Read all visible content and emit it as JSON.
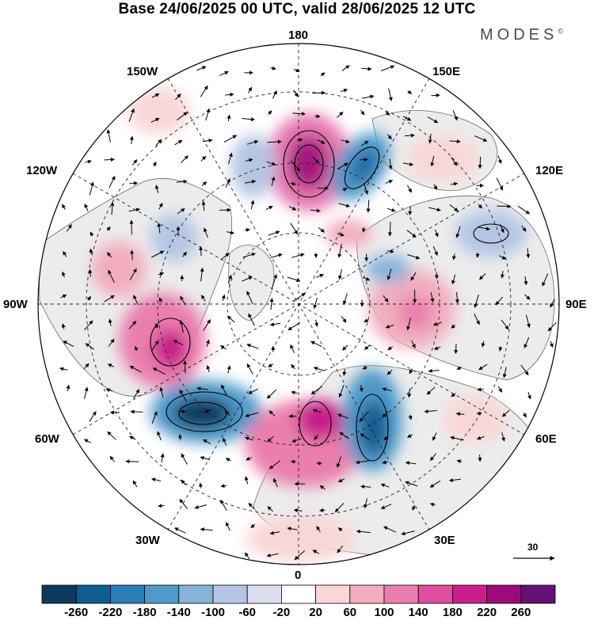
{
  "title": "Base 24/06/2025 00 UTC, valid 28/06/2025 12 UTC",
  "brand": "MODES",
  "brand_mark": "©",
  "longitude_labels": {
    "top": "180",
    "bottom": "0",
    "left": "90W",
    "right": "90E",
    "upper_left": "150W",
    "upper_right": "150E",
    "mid_left": "120W",
    "mid_right": "120E",
    "lower_left": "60W",
    "lower_right": "60E",
    "bottom_left": "30W",
    "bottom_right": "30E"
  },
  "reference_vector": {
    "label": "30"
  },
  "colorbar": {
    "labels": [
      "-260",
      "-220",
      "-180",
      "-140",
      "-100",
      "-60",
      "-20",
      "20",
      "60",
      "100",
      "140",
      "180",
      "220",
      "260"
    ],
    "colors": [
      "#0d3b5e",
      "#0f5c8e",
      "#2a7db8",
      "#4f9acb",
      "#86b4d9",
      "#b4c6e3",
      "#dcdff0",
      "#ffffff",
      "#f9d7d7",
      "#f2adbf",
      "#ea7fae",
      "#df4f9d",
      "#c91f8a",
      "#9c0b79",
      "#641075"
    ]
  },
  "field_colors": {
    "land": "#ececec",
    "coast": "#666666"
  }
}
